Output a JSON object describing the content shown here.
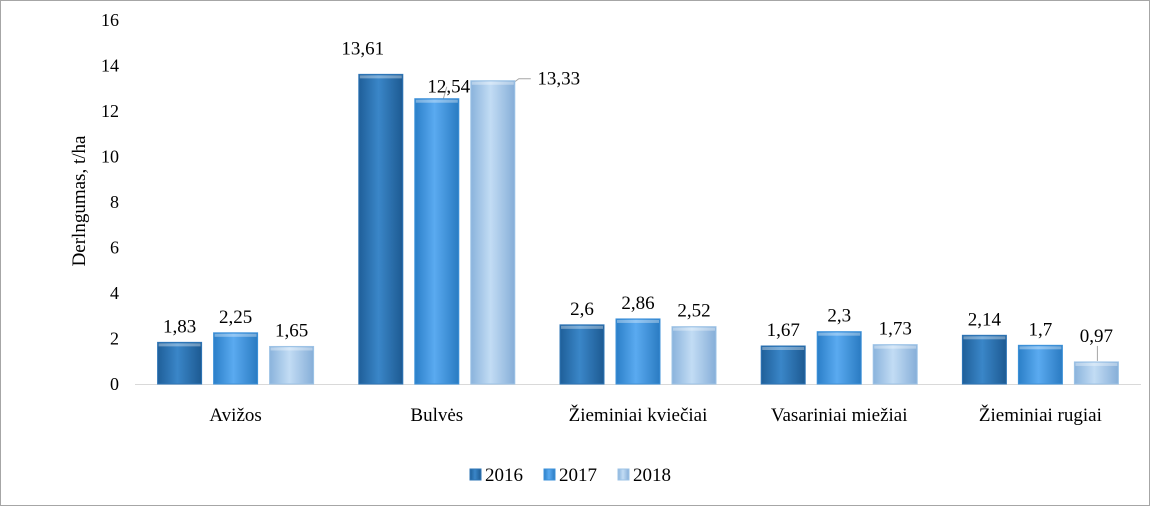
{
  "chart_data": {
    "type": "bar",
    "title": "",
    "xlabel": "",
    "ylabel": "Derlngumas, t/ha",
    "ylim": [
      0,
      16
    ],
    "yticks": [
      0,
      2,
      4,
      6,
      8,
      10,
      12,
      14,
      16
    ],
    "grid": false,
    "legend_position": "bottom",
    "categories": [
      "Avižos",
      "Bulvės",
      "Žieminiai kviečiai",
      "Vasariniai miežiai",
      "Žieminiai rugiai"
    ],
    "series": [
      {
        "name": "2016",
        "color": "#2e75b6",
        "values": [
          1.83,
          13.61,
          2.6,
          1.67,
          2.14
        ],
        "labels": [
          "1,83",
          "13,61",
          "2,6",
          "1,67",
          "2,14"
        ]
      },
      {
        "name": "2017",
        "color": "#3d91d9",
        "values": [
          2.25,
          12.54,
          2.86,
          2.3,
          1.7
        ],
        "labels": [
          "2,25",
          "12,54",
          "2,86",
          "2,3",
          "1,7"
        ]
      },
      {
        "name": "2018",
        "color": "#9dc3e6",
        "values": [
          1.65,
          13.33,
          2.52,
          1.73,
          0.97
        ],
        "labels": [
          "1,65",
          "13,33",
          "2,52",
          "1,73",
          "0,97"
        ]
      }
    ]
  }
}
